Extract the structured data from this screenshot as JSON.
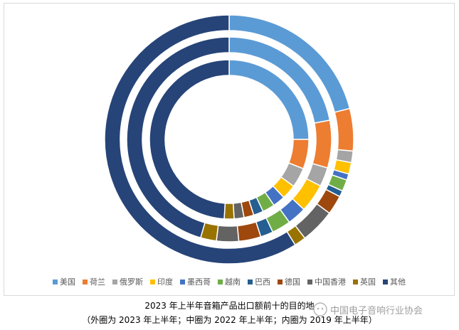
{
  "chart_data": {
    "type": "donut",
    "title": "2023 年上半年音箱产品出口额前十的目的地",
    "subtitle": "（外圈为 2023 年上半年；中圈为 2022 年上半年；内圈为 2019 年上半年）",
    "categories": [
      "美国",
      "荷兰",
      "俄罗斯",
      "印度",
      "墨西哥",
      "越南",
      "巴西",
      "德国",
      "中国香港",
      "英国",
      "其他"
    ],
    "colors": [
      "#5B9BD5",
      "#ED7D31",
      "#A5A5A5",
      "#FFC000",
      "#4472C4",
      "#70AD47",
      "#255E91",
      "#9E480E",
      "#636363",
      "#997300",
      "#264478"
    ],
    "series": [
      {
        "ring": "outer",
        "values": [
          21.0,
          5.5,
          1.5,
          1.5,
          0.8,
          1.5,
          0.8,
          2.5,
          4.5,
          1.5,
          58.9
        ]
      },
      {
        "ring": "middle",
        "values": [
          22.0,
          7.5,
          3.0,
          4.5,
          3.0,
          3.0,
          2.0,
          3.5,
          3.5,
          2.5,
          45.5
        ]
      },
      {
        "ring": "inner",
        "values": [
          25.0,
          6.0,
          4.0,
          3.0,
          2.5,
          2.5,
          2.0,
          2.0,
          2.0,
          2.0,
          49.0
        ]
      }
    ],
    "legend_position": "bottom"
  },
  "watermark": "中国电子音响行业协会"
}
